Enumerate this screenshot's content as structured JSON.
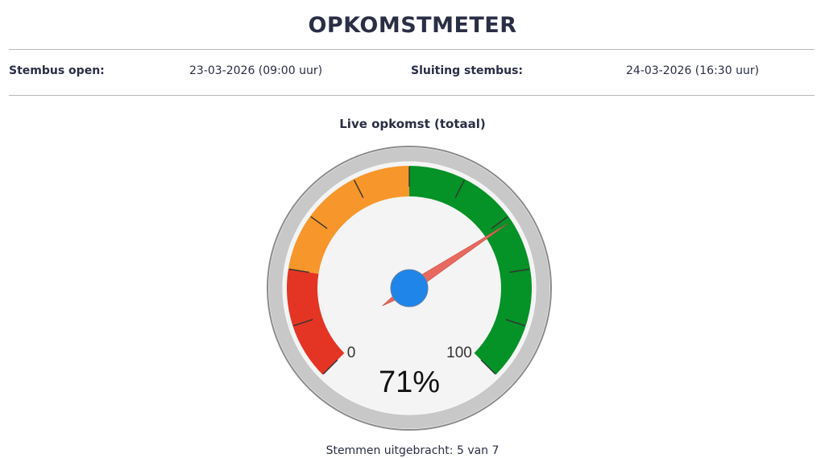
{
  "header": {
    "title": "OPKOMSTMETER"
  },
  "info": {
    "open_label": "Stembus open:",
    "open_value": "23-03-2026 (09:00 uur)",
    "close_label": "Sluiting stembus:",
    "close_value": "24-03-2026 (16:30 uur)"
  },
  "gauge": {
    "title": "Live opkomst (totaal)",
    "value": 71,
    "value_label": "71%",
    "min": 0,
    "max": 100,
    "min_label": "0",
    "max_label": "100",
    "bands": [
      {
        "from": 0,
        "to": 20,
        "color": "#e43524"
      },
      {
        "from": 20,
        "to": 50,
        "color": "#f7962b"
      },
      {
        "from": 50,
        "to": 100,
        "color": "#059226"
      }
    ],
    "needle_color": "#e8695f",
    "hub_color": "#1f85e8"
  },
  "footer": {
    "text": "Stemmen uitgebracht: 5 van 7"
  }
}
